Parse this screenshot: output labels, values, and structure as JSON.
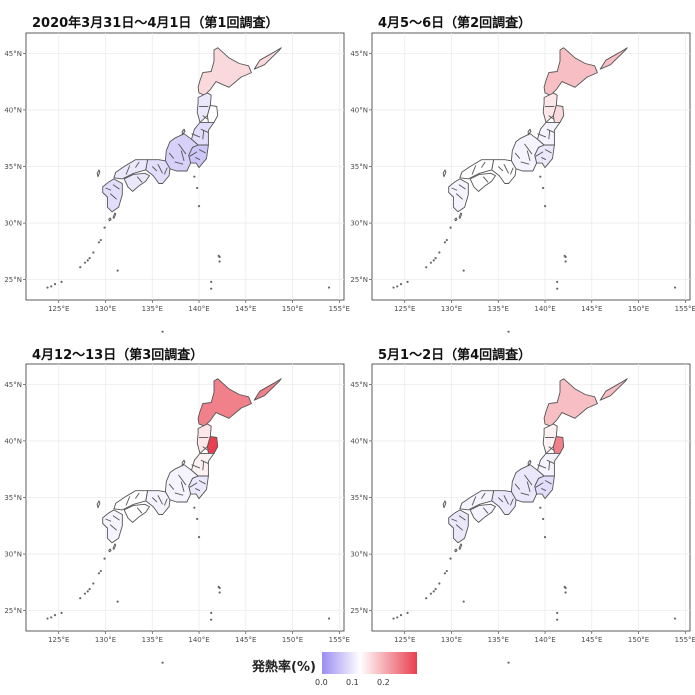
{
  "legend": {
    "title": "発熱率(%)",
    "labels": [
      "0.0",
      "0.1",
      "0.2"
    ],
    "colors": {
      "low": "#9b8cf2",
      "mid": "#ffffff",
      "high": "#e8404f"
    }
  },
  "axes": {
    "lon_ticks": [
      "125°E",
      "130°E",
      "135°E",
      "140°E",
      "145°E",
      "150°E",
      "155°E"
    ],
    "lat_ticks": [
      "45°N",
      "40°N",
      "35°N",
      "30°N",
      "25°N"
    ]
  },
  "panels": [
    {
      "title": "2020年3月31日〜4月1日（第1回調査）",
      "regions": {
        "hokkaido": 0.13,
        "tohoku_north": 0.08,
        "iwate": 0.1,
        "tohoku_south": 0.07,
        "kanto": 0.05,
        "chubu": 0.06,
        "kinki": 0.07,
        "chugoku": 0.08,
        "shikoku": 0.08,
        "kyushu": 0.07
      }
    },
    {
      "title": "4月5〜6日（第2回調査）",
      "regions": {
        "hokkaido": 0.15,
        "tohoku_north": 0.12,
        "iwate": 0.13,
        "tohoku_south": 0.09,
        "kanto": 0.08,
        "chubu": 0.09,
        "kinki": 0.1,
        "chugoku": 0.1,
        "shikoku": 0.1,
        "kyushu": 0.09
      }
    },
    {
      "title": "4月12〜13日（第3回調査）",
      "regions": {
        "hokkaido": 0.2,
        "tohoku_north": 0.12,
        "iwate": 0.25,
        "tohoku_south": 0.11,
        "kanto": 0.08,
        "chubu": 0.09,
        "kinki": 0.09,
        "chugoku": 0.1,
        "shikoku": 0.1,
        "kyushu": 0.09
      }
    },
    {
      "title": "5月1〜2日（第4回調査）",
      "regions": {
        "hokkaido": 0.15,
        "tohoku_north": 0.11,
        "iwate": 0.2,
        "tohoku_south": 0.09,
        "kanto": 0.07,
        "chubu": 0.08,
        "kinki": 0.08,
        "chugoku": 0.09,
        "shikoku": 0.09,
        "kyushu": 0.08
      }
    }
  ]
}
